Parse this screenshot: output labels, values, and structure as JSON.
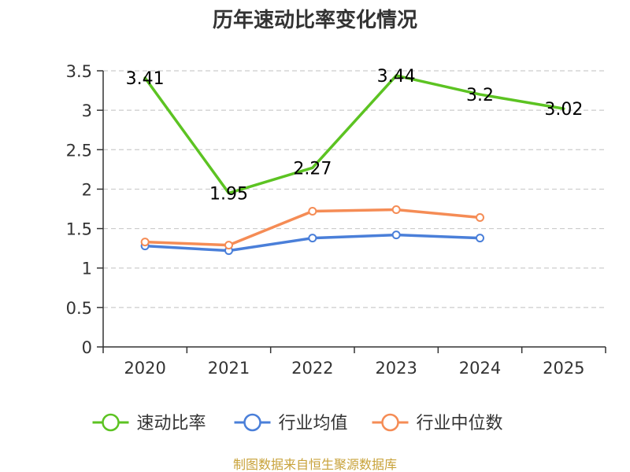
{
  "chart_data": {
    "type": "line",
    "title": "历年速动比率变化情况",
    "categories": [
      "2020",
      "2021",
      "2022",
      "2023",
      "2024",
      "2025"
    ],
    "ylim": [
      0,
      3.5
    ],
    "yticks": [
      0,
      0.5,
      1,
      1.5,
      2,
      2.5,
      3,
      3.5
    ],
    "ytick_labels": [
      "0",
      "0.5",
      "1",
      "1.5",
      "2",
      "2.5",
      "3",
      "3.5"
    ],
    "grid": true,
    "legend_position": "bottom",
    "series": [
      {
        "name": "速动比率",
        "color": "#5cc322",
        "values": [
          3.41,
          1.95,
          2.27,
          3.44,
          3.2,
          3.02
        ],
        "labels": [
          "3.41",
          "1.95",
          "2.27",
          "3.44",
          "3.2",
          "3.02"
        ],
        "markers": false
      },
      {
        "name": "行业均值",
        "color": "#4a7fd9",
        "values": [
          1.28,
          1.22,
          1.38,
          1.42,
          1.38,
          null
        ],
        "markers": true
      },
      {
        "name": "行业中位数",
        "color": "#f58c55",
        "values": [
          1.33,
          1.29,
          1.72,
          1.74,
          1.64,
          null
        ],
        "markers": true
      }
    ]
  },
  "source_text": "制图数据来自恒生聚源数据库"
}
